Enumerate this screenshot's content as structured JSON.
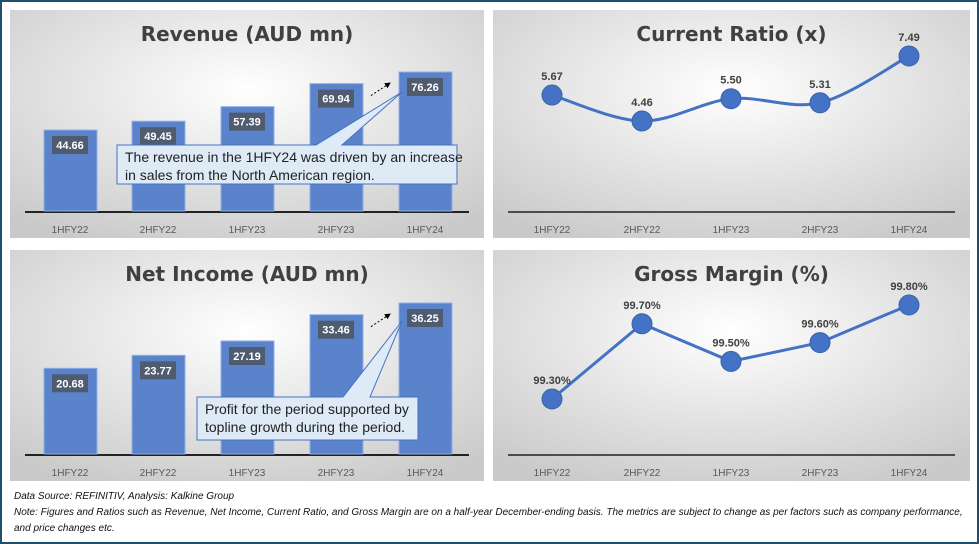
{
  "colors": {
    "bar": "#5a83cc",
    "line": "#4472c4",
    "label_bg": "#4f5b6e",
    "callout_bg": "#deeaf6",
    "callout_border": "#4472c4",
    "frame": "#1f4e6e"
  },
  "chart_data": [
    {
      "type": "bar",
      "title": "Revenue (AUD mn)",
      "categories": [
        "1HFY22",
        "2HFY22",
        "1HFY23",
        "2HFY23",
        "1HFY24"
      ],
      "values": [
        44.66,
        49.45,
        57.39,
        69.94,
        76.26
      ],
      "data_labels": [
        "44.66",
        "49.45",
        "57.39",
        "69.94",
        "76.26"
      ],
      "annotation": "The revenue in the 1HFY24 was driven by an increase in sales from the North American region.",
      "annotation_lines": [
        "The revenue in the 1HFY24 was driven by an increase",
        "in sales from the North American region."
      ]
    },
    {
      "type": "line",
      "title": "Current Ratio (x)",
      "categories": [
        "1HFY22",
        "2HFY22",
        "1HFY23",
        "2HFY23",
        "1HFY24"
      ],
      "values": [
        5.67,
        4.46,
        5.5,
        5.31,
        7.49
      ],
      "data_labels": [
        "5.67",
        "4.46",
        "5.50",
        "5.31",
        "7.49"
      ],
      "smooth": true
    },
    {
      "type": "bar",
      "title": "Net Income (AUD mn)",
      "categories": [
        "1HFY22",
        "2HFY22",
        "1HFY23",
        "2HFY23",
        "1HFY24"
      ],
      "values": [
        20.68,
        23.77,
        27.19,
        33.46,
        36.25
      ],
      "data_labels": [
        "20.68",
        "23.77",
        "27.19",
        "33.46",
        "36.25"
      ],
      "annotation": "Profit for the period supported by topline growth during the period.",
      "annotation_lines": [
        "Profit for the period supported by",
        "topline growth during the period."
      ]
    },
    {
      "type": "line",
      "title": "Gross Margin (%)",
      "categories": [
        "1HFY22",
        "2HFY22",
        "1HFY23",
        "2HFY23",
        "1HFY24"
      ],
      "values": [
        99.3,
        99.7,
        99.5,
        99.6,
        99.8
      ],
      "data_labels": [
        "99.30%",
        "99.70%",
        "99.50%",
        "99.60%",
        "99.80%"
      ],
      "smooth": false
    }
  ],
  "notes": {
    "source": "Data Source: REFINITIV, Analysis: Kalkine Group",
    "note": "Note: Figures and Ratios such as Revenue, Net Income, Current Ratio, and Gross Margin are on a half-year December-ending basis. The metrics are subject to change as per factors such as company performance, and price changes etc."
  }
}
